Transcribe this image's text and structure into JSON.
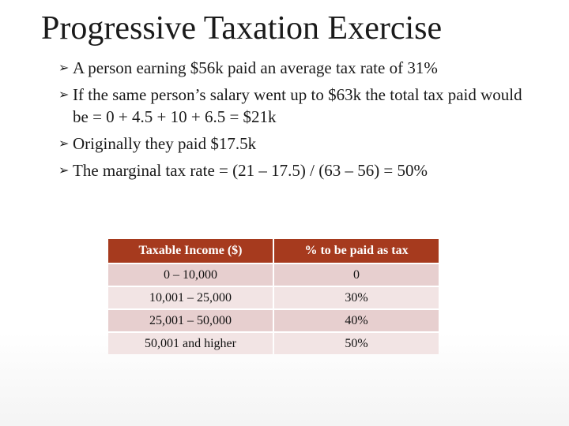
{
  "slide": {
    "title": "Progressive Taxation Exercise",
    "bullet_marker": "➢",
    "bullets": [
      {
        "text": "A person earning $56k paid an average tax rate of 31%"
      },
      {
        "text": "If the same person’s salary went up to $63k the total tax paid would be = 0 + 4.5 + 10 + 6.5 = $21k"
      },
      {
        "text": "Originally they paid $17.5k"
      },
      {
        "text": "The marginal tax rate = (21 – 17.5) / (63 – 56) = 50%"
      }
    ]
  },
  "table": {
    "headers": [
      "Taxable Income ($)",
      "% to be paid as tax"
    ],
    "rows": [
      {
        "income": "0 – 10,000",
        "rate": "0"
      },
      {
        "income": "10,001 – 25,000",
        "rate": "30%"
      },
      {
        "income": "25,001 – 50,000",
        "rate": "40%"
      },
      {
        "income": "50,001 and higher",
        "rate": "50%"
      }
    ]
  },
  "colors": {
    "header_bg": "#a63a1e",
    "row_odd": "#e7cfcf",
    "row_even": "#f2e4e4"
  }
}
